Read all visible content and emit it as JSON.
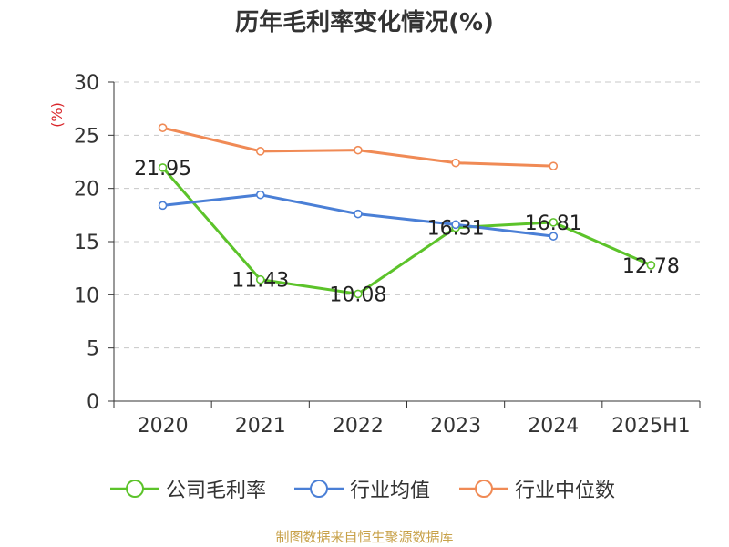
{
  "title": "历年毛利率变化情况(%)",
  "source": "制图数据来自恒生聚源数据库",
  "chart_data": {
    "type": "line",
    "title": "历年毛利率变化情况(%)",
    "ylabel": "(%)",
    "xlabel": "",
    "categories": [
      "2020",
      "2021",
      "2022",
      "2023",
      "2024",
      "2025H1"
    ],
    "ylim": [
      0,
      30
    ],
    "yticks": [
      0,
      5,
      10,
      15,
      20,
      25,
      30
    ],
    "grid": true,
    "legend_position": "bottom",
    "series": [
      {
        "name": "公司毛利率",
        "color": "#5cc32a",
        "values": [
          21.95,
          11.43,
          10.08,
          16.31,
          16.81,
          12.78
        ],
        "labels": [
          "21.95",
          "11.43",
          "10.08",
          "16.31",
          "16.81",
          "12.78"
        ]
      },
      {
        "name": "行业均值",
        "color": "#4a7fd6",
        "values": [
          18.4,
          19.4,
          17.6,
          16.6,
          15.5,
          null
        ]
      },
      {
        "name": "行业中位数",
        "color": "#f08a55",
        "values": [
          25.7,
          23.5,
          23.6,
          22.4,
          22.1,
          null
        ]
      }
    ]
  }
}
